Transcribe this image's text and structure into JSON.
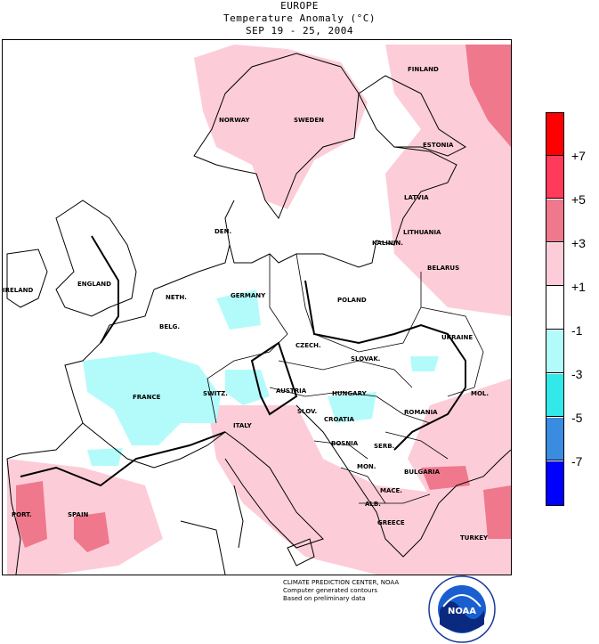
{
  "header": {
    "region": "EUROPE",
    "variable": "Temperature Anomaly (°C)",
    "period": "SEP 19 - 25, 2004"
  },
  "legend": {
    "colors": [
      "#ff0000",
      "#ff3a5a",
      "#f0788c",
      "#fccdd8",
      "#ffffff",
      "#b3fbfb",
      "#33e8e8",
      "#3a8ce0",
      "#0000ff"
    ],
    "labels": [
      "+7",
      "+5",
      "+3",
      "+1",
      "-1",
      "-3",
      "-5",
      "-7"
    ]
  },
  "countries": {
    "finland": "FINLAND",
    "norway": "NORWAY",
    "sweden": "SWEDEN",
    "estonia": "ESTONIA",
    "latvia": "LATVIA",
    "lithuania": "LITHUANIA",
    "den": "DEN.",
    "kaliningrad": "KALININ.",
    "belarus": "BELARUS",
    "ireland": "IRELAND",
    "england": "ENGLAND",
    "neth": "NETH.",
    "germany": "GERMANY",
    "poland": "POLAND",
    "belg": "BELG.",
    "czech": "CZECH.",
    "ukraine": "UKRAINE",
    "slovak": "SLOVAK.",
    "france": "FRANCE",
    "switz": "SWITZ.",
    "austria": "AUSTRIA",
    "hungary": "HUNGARY",
    "mol": "MOL.",
    "sloven": "SLOV.",
    "croatia": "CROATIA",
    "romania": "ROMANIA",
    "italy": "ITALY",
    "bosnia": "BOSNIA",
    "serb": "SERB.",
    "mon": "MON.",
    "bulgaria": "BULGARIA",
    "port": "PORT.",
    "spain": "SPAIN",
    "mace": "MACE.",
    "alb": "ALB.",
    "greece": "GREECE",
    "turkey": "TURKEY"
  },
  "credits": {
    "line1": "CLIMATE PREDICTION CENTER, NOAA",
    "line2": "Computer generated contours",
    "line3": "Based on preliminary data"
  },
  "logo": {
    "text": "NOAA"
  }
}
